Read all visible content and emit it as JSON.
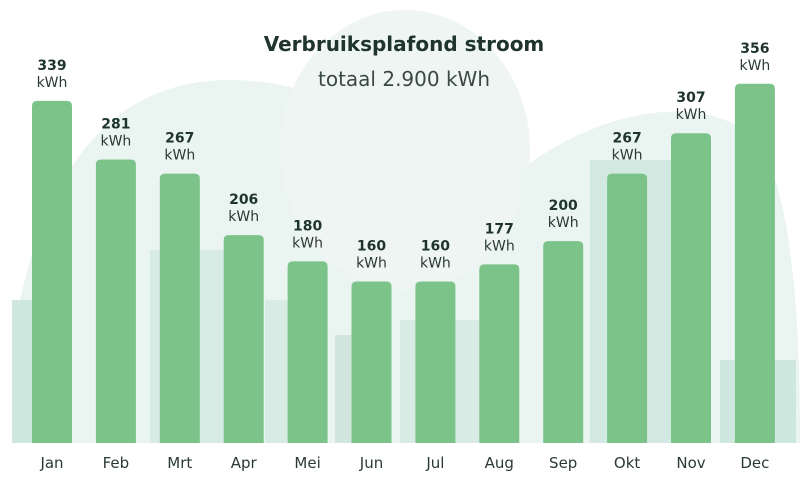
{
  "chart_data": {
    "type": "bar",
    "title": "Verbruiksplafond stroom",
    "subtitle": "totaal 2.900 kWh",
    "categories": [
      "Jan",
      "Feb",
      "Mrt",
      "Apr",
      "Mei",
      "Jun",
      "Jul",
      "Aug",
      "Sep",
      "Okt",
      "Nov",
      "Dec"
    ],
    "values": [
      339,
      281,
      267,
      206,
      180,
      160,
      160,
      177,
      200,
      267,
      307,
      356
    ],
    "unit": "kWh",
    "ylim": [
      0,
      439
    ],
    "grid": false,
    "colors": {
      "bar": "#7cc38a",
      "text": "#1f352b",
      "background": "#e6f3ee"
    }
  }
}
